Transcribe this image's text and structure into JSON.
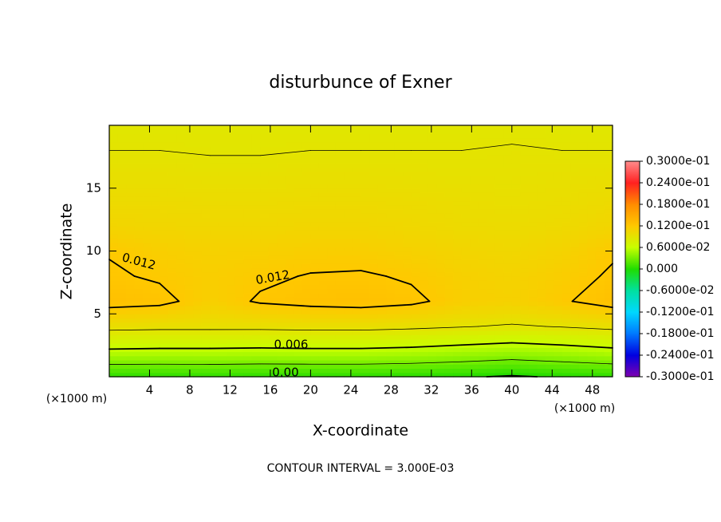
{
  "chart_data": {
    "type": "contour",
    "title": "disturbunce of Exner",
    "x_label": "X-coordinate",
    "y_label": "Z-coordinate",
    "x_unit_left": "(×1000 m)",
    "x_unit_right": "(×1000 m)",
    "footnote": "CONTOUR INTERVAL = 3.000E-03",
    "xlim": [
      0,
      50
    ],
    "ylim": [
      0,
      20
    ],
    "xticks": [
      4,
      8,
      12,
      16,
      20,
      24,
      28,
      32,
      36,
      40,
      44,
      48
    ],
    "yticks": [
      5,
      10,
      15
    ],
    "x": [
      0,
      5,
      10,
      15,
      20,
      25,
      30,
      35,
      40,
      45,
      50
    ],
    "y": [
      0,
      2,
      4,
      6,
      8,
      10,
      12,
      14,
      16,
      18,
      20
    ],
    "z": [
      [
        0.0005,
        0.0005,
        0.0006,
        0.0005,
        0.0005,
        0.0005,
        0.0004,
        0.0002,
        -0.0002,
        0.0002,
        0.0005
      ],
      [
        0.0056,
        0.0055,
        0.0055,
        0.0054,
        0.0055,
        0.0055,
        0.0053,
        0.0049,
        0.0045,
        0.0049,
        0.0054
      ],
      [
        0.0096,
        0.0095,
        0.0095,
        0.0095,
        0.0096,
        0.0096,
        0.0094,
        0.0091,
        0.0088,
        0.0091,
        0.0095
      ],
      [
        0.0128,
        0.0125,
        0.0112,
        0.0122,
        0.0126,
        0.0128,
        0.0124,
        0.0113,
        0.011,
        0.0118,
        0.0128
      ],
      [
        0.0122,
        0.0118,
        0.0113,
        0.0117,
        0.0121,
        0.0122,
        0.0118,
        0.0111,
        0.0108,
        0.0114,
        0.0122
      ],
      [
        0.0119,
        0.0113,
        0.011,
        0.0111,
        0.0113,
        0.0113,
        0.011,
        0.0106,
        0.0104,
        0.0108,
        0.0118
      ],
      [
        0.0106,
        0.0105,
        0.0104,
        0.0104,
        0.0105,
        0.0105,
        0.0103,
        0.01,
        0.0099,
        0.0101,
        0.0106
      ],
      [
        0.01,
        0.01,
        0.0099,
        0.0099,
        0.01,
        0.01,
        0.0099,
        0.0097,
        0.0096,
        0.0097,
        0.01
      ],
      [
        0.0095,
        0.0095,
        0.0094,
        0.0094,
        0.0095,
        0.0095,
        0.0094,
        0.0093,
        0.0093,
        0.0094,
        0.0095
      ],
      [
        0.009,
        0.009,
        0.0089,
        0.0089,
        0.009,
        0.009,
        0.009,
        0.009,
        0.0091,
        0.009,
        0.009
      ],
      [
        0.0087,
        0.0087,
        0.0087,
        0.0087,
        0.0087,
        0.0087,
        0.0087,
        0.0087,
        0.0087,
        0.0087,
        0.0087
      ]
    ],
    "contour_levels": [
      0,
      0.003,
      0.006,
      0.009,
      0.012
    ],
    "contour_labels": [
      {
        "value": 0.012,
        "label": "0.012"
      },
      {
        "value": 0.012,
        "label": "0.012"
      },
      {
        "value": 0.006,
        "label": "0.006"
      },
      {
        "value": 0,
        "label": "0.00"
      }
    ],
    "colorbar": [
      {
        "value": 0.03,
        "label": "0.3000e-01",
        "color": "#ff8c8c"
      },
      {
        "value": 0.024,
        "label": "0.2400e-01",
        "color": "#ff2020"
      },
      {
        "value": 0.018,
        "label": "0.1800e-01",
        "color": "#ff8c00"
      },
      {
        "value": 0.012,
        "label": "0.1200e-01",
        "color": "#ffc800"
      },
      {
        "value": 0.006,
        "label": "0.6000e-02",
        "color": "#c8ff00"
      },
      {
        "value": 0,
        "label": "0.000",
        "color": "#20dc00"
      },
      {
        "value": -0.006,
        "label": "-0.6000e-02",
        "color": "#00e0a0"
      },
      {
        "value": -0.012,
        "label": "-0.1200e-01",
        "color": "#00d8ff"
      },
      {
        "value": -0.018,
        "label": "-0.1800e-01",
        "color": "#0078ff"
      },
      {
        "value": -0.024,
        "label": "-0.2400e-01",
        "color": "#0000e0"
      },
      {
        "value": -0.03,
        "label": "-0.3000e-01",
        "color": "#8000b0"
      }
    ]
  }
}
